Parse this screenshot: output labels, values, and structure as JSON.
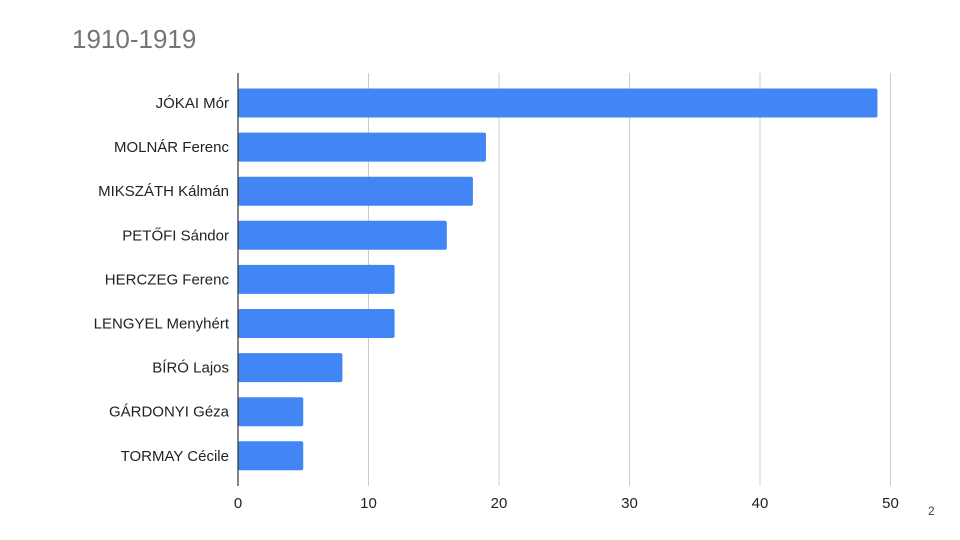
{
  "slide": {
    "page_number": "2"
  },
  "chart_data": {
    "type": "bar",
    "orientation": "horizontal",
    "title": "1910-1919",
    "categories": [
      "JÓKAI Mór",
      "MOLNÁR Ferenc",
      "MIKSZÁTH Kálmán",
      "PETŐFI Sándor",
      "HERCZEG Ferenc",
      "LENGYEL Menyhért",
      "BÍRÓ Lajos",
      "GÁRDONYI Géza",
      "TORMAY Cécile"
    ],
    "values": [
      49,
      19,
      18,
      16,
      12,
      12,
      8,
      5,
      5
    ],
    "xlim": [
      0,
      50
    ],
    "xticks": [
      "0",
      "10",
      "20",
      "30",
      "40",
      "50"
    ],
    "grid": true,
    "legend": "none",
    "bar_color": "#4285f4",
    "grid_color": "#cccccc",
    "axis_color": "#333333"
  }
}
